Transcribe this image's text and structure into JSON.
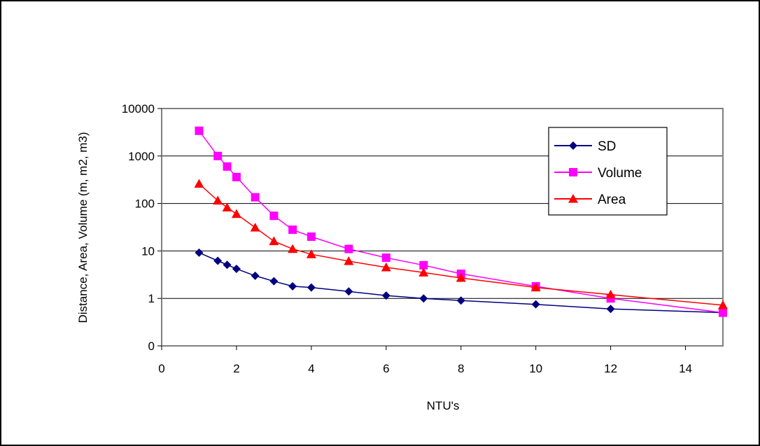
{
  "chart_data": {
    "type": "line",
    "title": "",
    "xlabel": "NTU's",
    "ylabel": "Distance, Area, Volume (m, m2, m3)",
    "xlim": [
      0,
      15
    ],
    "ylim": [
      0.1,
      10000
    ],
    "y_scale": "log",
    "x_ticks": [
      0,
      2,
      4,
      6,
      8,
      10,
      12,
      14
    ],
    "x_tick_labels": [
      "0",
      "2",
      "4",
      "6",
      "8",
      "10",
      "12",
      "14"
    ],
    "y_ticks": [
      0.1,
      1,
      10,
      100,
      1000,
      10000
    ],
    "y_tick_labels": [
      "0",
      "1",
      "10",
      "100",
      "1000",
      "10000"
    ],
    "grid": "horizontal",
    "legend_position": "top-right",
    "plot_background": "#ffffff",
    "plot_border_color": "#808080",
    "series": [
      {
        "name": "SD",
        "color": "#000080",
        "marker": "diamond",
        "x": [
          1,
          1.5,
          1.75,
          2,
          2.5,
          3,
          3.5,
          4,
          5,
          6,
          7,
          8,
          10,
          12,
          15
        ],
        "y": [
          9.2,
          6.2,
          5.1,
          4.2,
          3.0,
          2.3,
          1.8,
          1.7,
          1.4,
          1.15,
          1.0,
          0.9,
          0.75,
          0.6,
          0.5
        ]
      },
      {
        "name": "Volume",
        "color": "#ff00ff",
        "marker": "square",
        "x": [
          1,
          1.5,
          1.75,
          2,
          2.5,
          3,
          3.5,
          4,
          5,
          6,
          7,
          8,
          10,
          12,
          15
        ],
        "y": [
          3400,
          1000,
          600,
          360,
          135,
          55,
          28,
          20,
          11,
          7.2,
          5,
          3.3,
          1.8,
          1.0,
          0.5
        ]
      },
      {
        "name": "Area",
        "color": "#ff0000",
        "marker": "triangle",
        "x": [
          1,
          1.5,
          1.75,
          2,
          2.5,
          3,
          3.5,
          4,
          5,
          6,
          7,
          8,
          10,
          12,
          15
        ],
        "y": [
          260,
          115,
          82,
          60,
          31,
          16,
          11,
          8.5,
          6.1,
          4.5,
          3.5,
          2.7,
          1.7,
          1.2,
          0.72
        ]
      }
    ]
  }
}
